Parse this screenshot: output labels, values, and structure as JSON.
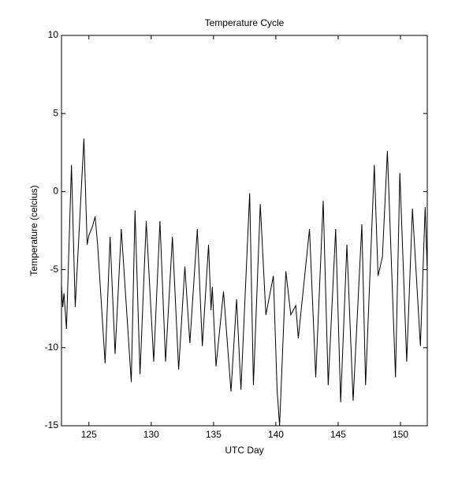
{
  "chart_data": {
    "type": "line",
    "title": "Temperature Cycle",
    "x_label": "UTC Day",
    "y_label": "Temperature (celcius)",
    "x": [
      122.8,
      122.9,
      123.0,
      123.2,
      123.6,
      123.9,
      124.6,
      124.86,
      125.0,
      125.3,
      125.5,
      125.7,
      126.3,
      126.7,
      127.1,
      127.6,
      128.4,
      128.7,
      129.1,
      129.6,
      130.2,
      130.7,
      131.15,
      131.7,
      132.2,
      132.7,
      133.1,
      133.7,
      134.1,
      134.6,
      134.8,
      134.9,
      135.2,
      135.8,
      136.4,
      136.85,
      137.2,
      137.9,
      138.2,
      138.75,
      139.2,
      139.8,
      140.1,
      140.3,
      140.8,
      141.2,
      141.6,
      141.8,
      142.7,
      143.2,
      143.8,
      144.2,
      144.8,
      145.2,
      145.7,
      146.2,
      146.9,
      147.2,
      147.9,
      148.2,
      148.55,
      148.95,
      149.6,
      149.95,
      150.5,
      150.96,
      151.6,
      151.98,
      152.15
    ],
    "values": [
      -6.0,
      -7.4,
      -6.5,
      -8.8,
      1.7,
      -7.4,
      3.4,
      -3.4,
      -2.8,
      -2.2,
      -1.6,
      -3.4,
      -11.0,
      -2.9,
      -10.4,
      -2.4,
      -12.2,
      -1.2,
      -11.7,
      -1.9,
      -10.9,
      -1.9,
      -10.9,
      -2.9,
      -11.4,
      -4.8,
      -9.7,
      -2.4,
      -9.9,
      -3.4,
      -7.6,
      -6.1,
      -11.2,
      -6.4,
      -12.8,
      -6.9,
      -12.7,
      -0.1,
      -12.4,
      -0.8,
      -7.9,
      -5.4,
      -12.7,
      -15.0,
      -5.1,
      -7.9,
      -7.3,
      -9.4,
      -2.4,
      -11.9,
      -0.6,
      -12.4,
      -2.4,
      -13.5,
      -3.4,
      -13.4,
      -2.1,
      -12.4,
      1.7,
      -5.4,
      -4.2,
      2.6,
      -11.9,
      1.2,
      -10.9,
      -1.1,
      -9.9,
      -1.0,
      -5.1
    ],
    "color": "#000000",
    "xlim": [
      122.8,
      152.15
    ],
    "ylim": [
      -15,
      10
    ],
    "xticks": [
      125,
      130,
      135,
      140,
      145,
      150
    ],
    "yticks": [
      -15,
      -10,
      -5,
      0,
      5,
      10
    ]
  }
}
